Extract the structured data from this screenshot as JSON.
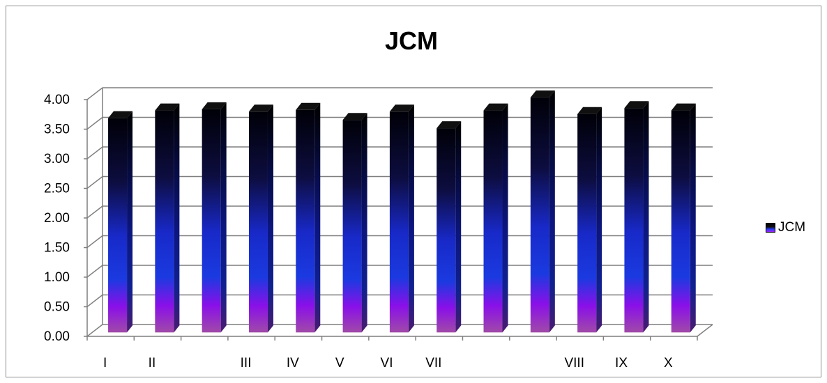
{
  "chart_data": {
    "type": "bar",
    "title": "JCM",
    "categories": [
      "I",
      "II",
      "",
      "III",
      "IV",
      "V",
      "VI",
      "VII",
      "",
      "",
      "VIII",
      "IX",
      "X"
    ],
    "series": [
      {
        "name": "JCM",
        "values": [
          3.62,
          3.75,
          3.77,
          3.73,
          3.76,
          3.59,
          3.73,
          3.45,
          3.75,
          3.97,
          3.69,
          3.79,
          3.75
        ]
      }
    ],
    "ylim": [
      0,
      4
    ],
    "yticks": [
      "0.00",
      "0.50",
      "1.00",
      "1.50",
      "2.00",
      "2.50",
      "3.00",
      "3.50",
      "4.00"
    ],
    "grid": true,
    "legend_position": "right"
  },
  "colors": {
    "bar_top": "#000000",
    "bar_mid": "#1a2fd0",
    "bar_bottom": "#8a1fe0",
    "grid": "#7f7f7f"
  }
}
